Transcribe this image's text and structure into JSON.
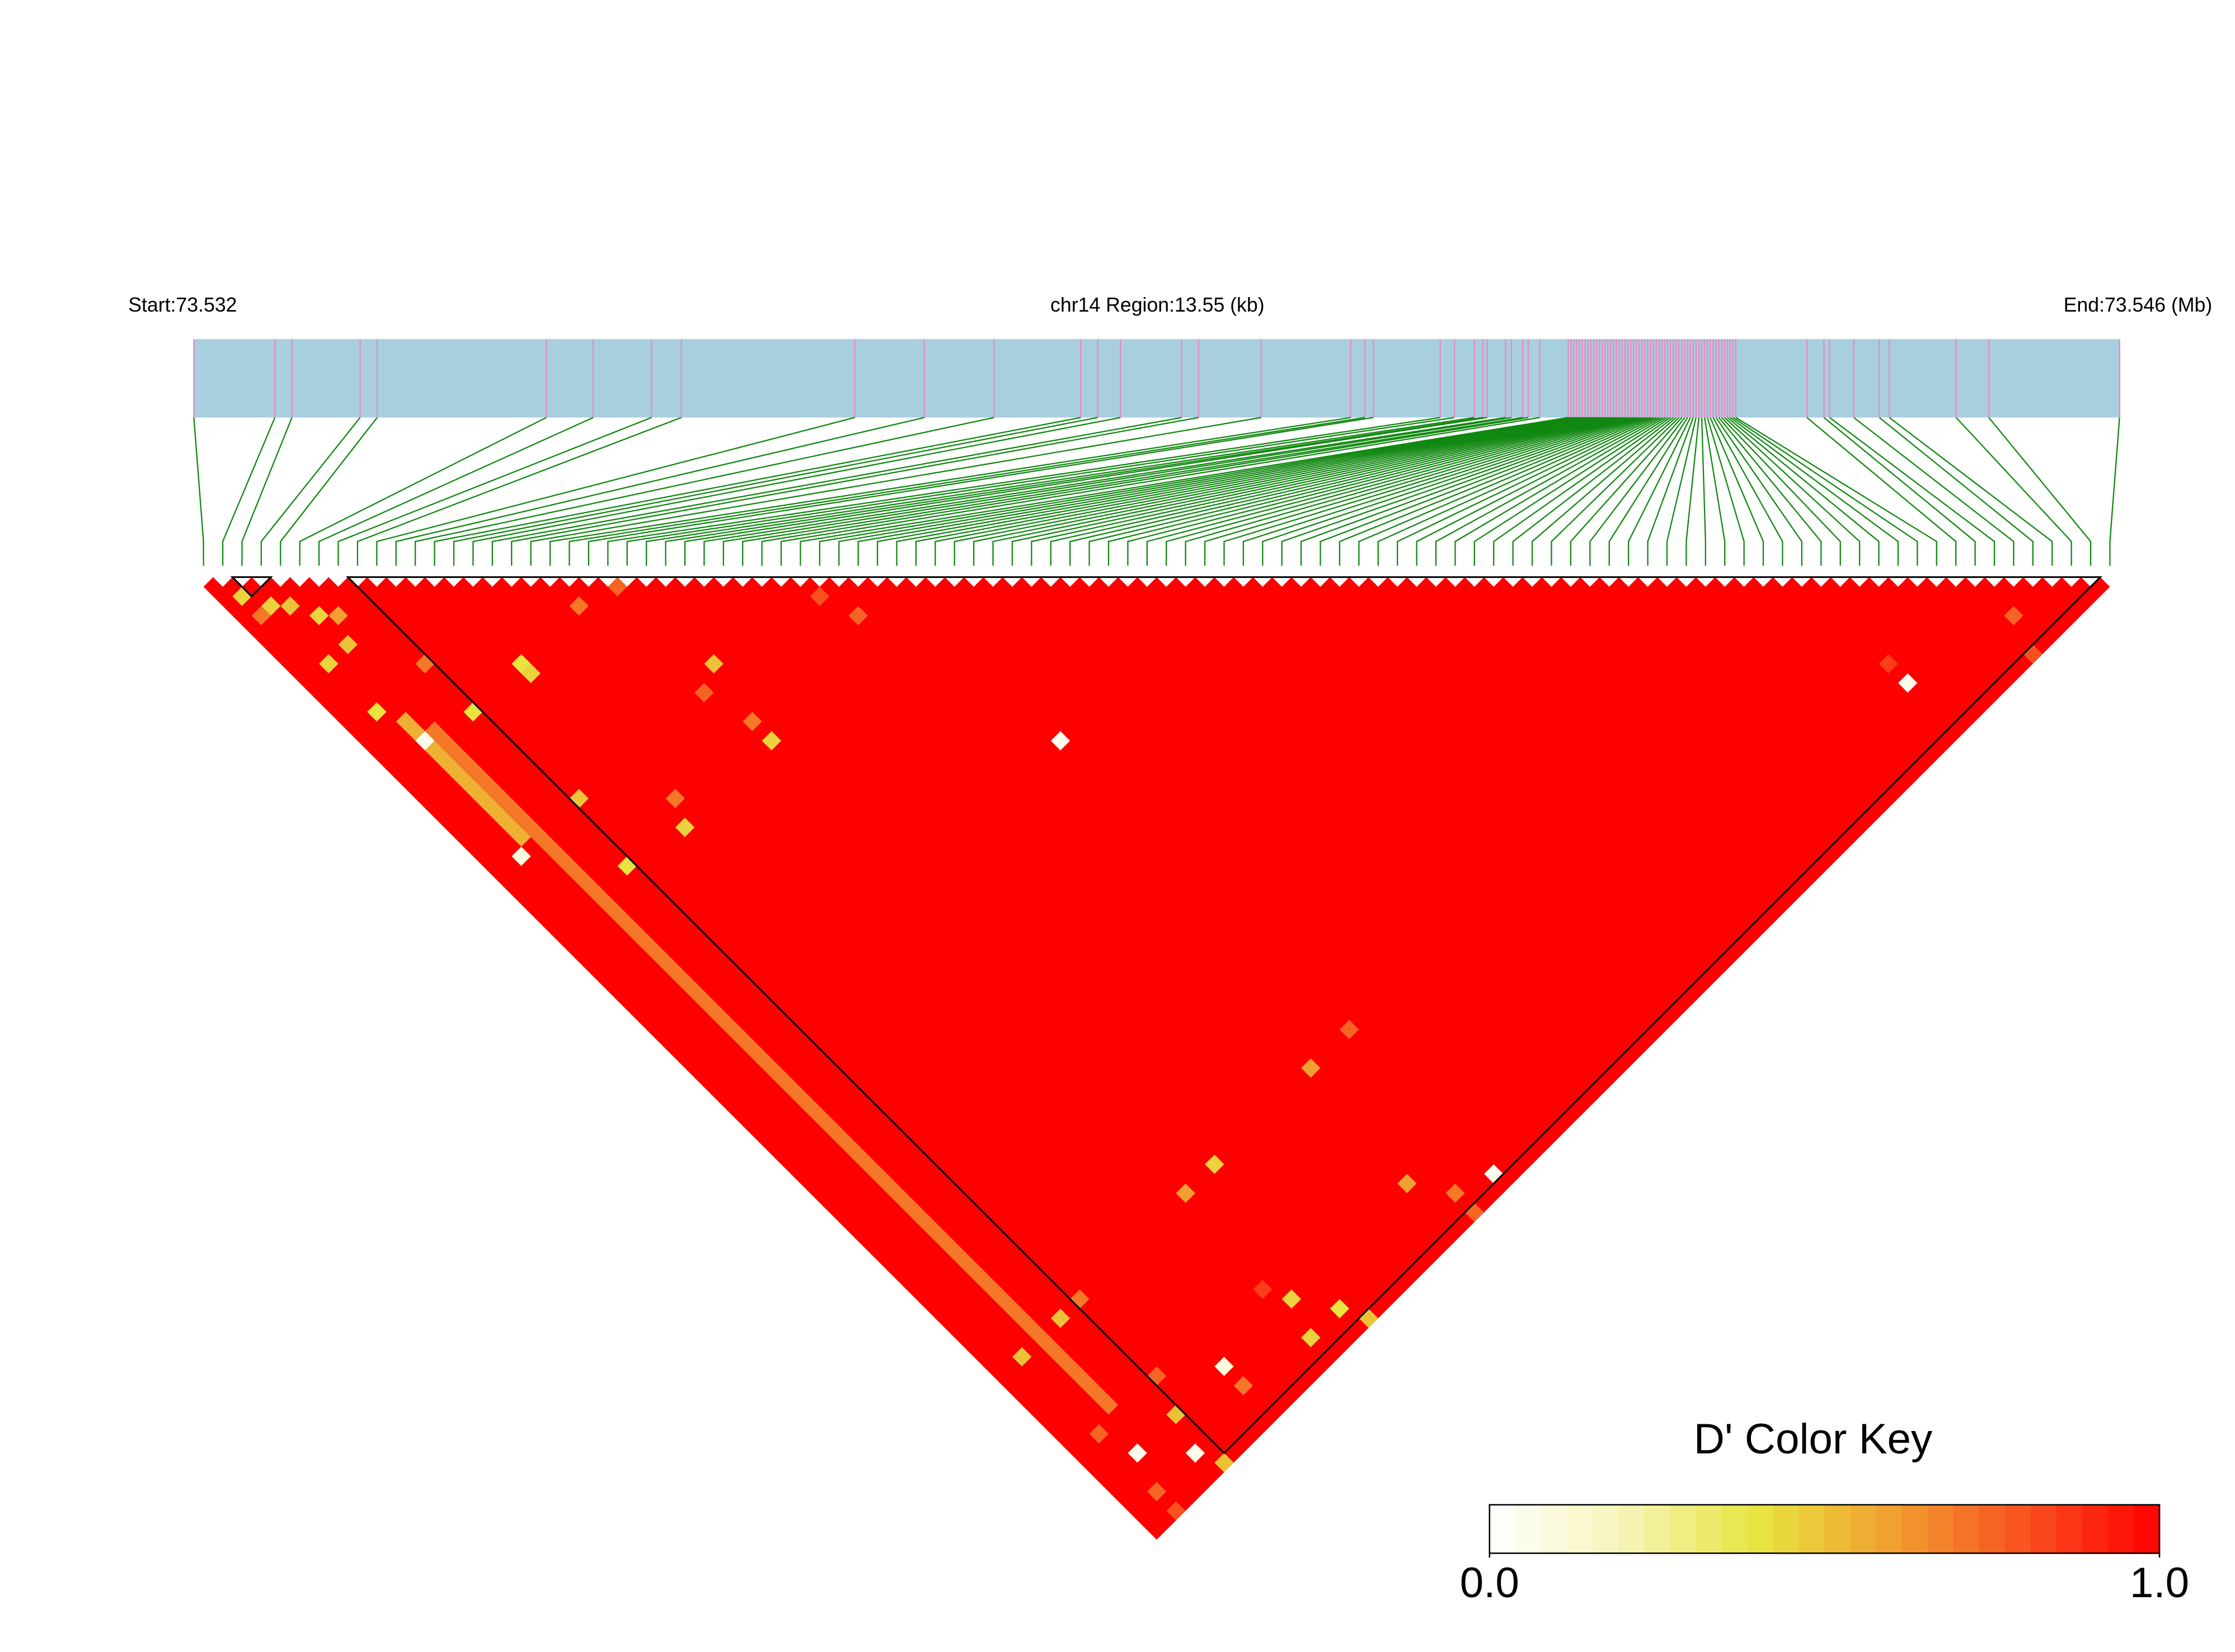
{
  "chart_data": {
    "type": "ld_heatmap",
    "start_label": "Start:73.532",
    "region_label": "chr14 Region:13.55 (kb)",
    "end_label": "End:73.546 (Mb)",
    "region_kb": 13.55,
    "snp_positions_kb": [
      0.0,
      0.57,
      0.69,
      1.17,
      1.29,
      2.48,
      2.81,
      3.22,
      3.43,
      4.65,
      5.14,
      5.63,
      6.24,
      6.36,
      6.52,
      6.95,
      7.07,
      7.51,
      8.14,
      8.24,
      8.3,
      8.77,
      8.87,
      9.01,
      9.07,
      9.1,
      9.23,
      9.27,
      9.35,
      9.39,
      9.47,
      9.67,
      9.69,
      9.71,
      9.73,
      9.75,
      9.77,
      9.79,
      9.81,
      9.83,
      9.85,
      9.87,
      9.89,
      9.91,
      9.93,
      9.95,
      9.97,
      9.99,
      10.01,
      10.03,
      10.05,
      10.07,
      10.09,
      10.11,
      10.13,
      10.15,
      10.17,
      10.19,
      10.21,
      10.23,
      10.25,
      10.27,
      10.29,
      10.31,
      10.33,
      10.35,
      10.37,
      10.39,
      10.41,
      10.43,
      10.45,
      10.47,
      10.49,
      10.51,
      10.53,
      10.55,
      10.57,
      10.59,
      10.61,
      10.63,
      10.65,
      10.67,
      10.69,
      10.71,
      10.73,
      10.75,
      10.77,
      10.79,
      10.81,
      10.83,
      10.85,
      11.35,
      11.47,
      11.51,
      11.68,
      11.86,
      11.93,
      12.4,
      12.63,
      13.55
    ],
    "cells": [
      [
        2,
        5,
        0.45
      ],
      [
        36,
        53,
        0.05
      ],
      [
        83,
        94,
        0.05
      ],
      [
        83,
        92,
        0.85
      ],
      [
        12,
        21,
        0.4
      ],
      [
        12,
        22,
        0.45
      ],
      [
        22,
        31,
        0.5
      ],
      [
        20,
        32,
        0.75
      ],
      [
        21,
        38,
        0.45
      ],
      [
        21,
        36,
        0.7
      ],
      [
        18,
        21,
        0.7
      ],
      [
        32,
        36,
        0.75
      ],
      [
        31,
        33,
        0.8
      ],
      [
        21,
        22,
        0.75
      ],
      [
        7,
        37,
        0.4
      ],
      [
        12,
        38,
        0.45
      ],
      [
        13,
        36,
        0.7
      ],
      [
        8,
        31,
        0.5
      ],
      [
        2,
        31,
        0.1
      ],
      [
        3,
        20,
        0.05
      ],
      [
        7,
        21,
        0.4
      ],
      [
        32,
        83,
        0.6
      ],
      [
        36,
        83,
        0.75
      ],
      [
        22,
        83,
        0.45
      ],
      [
        19,
        83,
        0.6
      ],
      [
        31,
        94,
        0.6
      ],
      [
        36,
        98,
        0.05
      ],
      [
        33,
        97,
        0.7
      ],
      [
        33,
        99,
        0.75
      ],
      [
        19,
        94,
        0.45
      ],
      [
        21,
        97,
        0.4
      ],
      [
        22,
        99,
        0.5
      ],
      [
        18,
        97,
        0.45
      ],
      [
        18,
        92,
        0.85
      ],
      [
        12,
        94,
        0.1
      ],
      [
        12,
        96,
        0.7
      ],
      [
        7,
        94,
        0.5
      ],
      [
        3,
        94,
        0.05
      ],
      [
        6,
        97,
        0.05
      ],
      [
        7,
        99,
        0.5
      ],
      [
        8,
        83,
        0.7
      ],
      [
        6,
        83,
        0.5
      ],
      [
        2,
        83,
        0.5
      ],
      [
        8,
        91,
        0.75
      ],
      [
        2,
        91,
        0.75
      ],
      [
        2,
        97,
        0.75
      ],
      [
        2,
        99,
        0.8
      ],
      [
        7,
        16,
        0.7
      ],
      [
        4,
        11,
        0.5
      ],
      [
        2,
        11,
        0.45
      ],
      [
        2,
        16,
        0.4
      ],
      [
        92,
        96,
        0.75
      ],
      [
        91,
        99,
        0.8
      ],
      [
        1,
        3,
        0.45
      ],
      [
        3,
        6,
        0.5
      ],
      [
        5,
        9,
        0.6
      ],
      [
        1,
        5,
        0.7
      ],
      [
        4,
        8,
        0.45
      ]
    ],
    "runs": [
      {
        "i": 4,
        "j": [
          20,
          90
        ],
        "value": 0.7
      },
      {
        "i": 3,
        "j": [
          18,
          30
        ],
        "value": 0.55
      }
    ],
    "blocks": [
      [
        8,
        98
      ],
      [
        2,
        3
      ]
    ],
    "bar_color": "#a8cfe0",
    "snp_color": "#e58fc4",
    "link_color": "#118811",
    "colorbar": {
      "title": "D' Color Key",
      "range": [
        0,
        1
      ],
      "ticks": [
        {
          "value": 0,
          "label": "0.0"
        },
        {
          "value": 1,
          "label": "1.0"
        }
      ],
      "colors": [
        "#ffffff",
        "#f6f4b8",
        "#e8e440",
        "#f0a030",
        "#f85020",
        "#ff0000"
      ]
    }
  }
}
